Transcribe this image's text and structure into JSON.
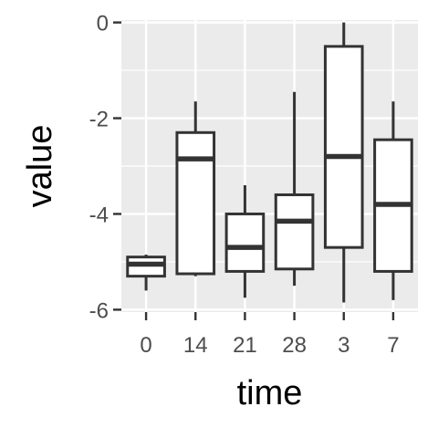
{
  "chart_data": {
    "type": "box",
    "xlabel": "time",
    "ylabel": "value",
    "categories": [
      "0",
      "14",
      "21",
      "28",
      "3",
      "7"
    ],
    "ylim": [
      -6.05,
      0.05
    ],
    "yticks": [
      0,
      -2,
      -4,
      -6
    ],
    "ytick_labels": [
      "0",
      "-2",
      "-4",
      "-6"
    ],
    "grid": true,
    "boxes": [
      {
        "category": "0",
        "whisker_low": -5.6,
        "q1": -5.3,
        "median": -5.05,
        "q3": -4.9,
        "whisker_high": -4.85
      },
      {
        "category": "14",
        "whisker_low": -5.3,
        "q1": -5.25,
        "median": -2.85,
        "q3": -2.3,
        "whisker_high": -1.65
      },
      {
        "category": "21",
        "whisker_low": -5.75,
        "q1": -5.2,
        "median": -4.7,
        "q3": -4.0,
        "whisker_high": -3.4
      },
      {
        "category": "28",
        "whisker_low": -5.5,
        "q1": -5.15,
        "median": -4.15,
        "q3": -3.6,
        "whisker_high": -1.45
      },
      {
        "category": "3",
        "whisker_low": -5.85,
        "q1": -4.7,
        "median": -2.8,
        "q3": -0.5,
        "whisker_high": 0.0
      },
      {
        "category": "7",
        "whisker_low": -5.8,
        "q1": -5.2,
        "median": -3.8,
        "q3": -2.45,
        "whisker_high": -1.65
      }
    ],
    "colors": {
      "panel_background": "#ebebeb",
      "grid_major": "#ffffff",
      "box_fill": "#ffffff",
      "box_stroke": "#333333",
      "tick_mark": "#333333"
    }
  }
}
